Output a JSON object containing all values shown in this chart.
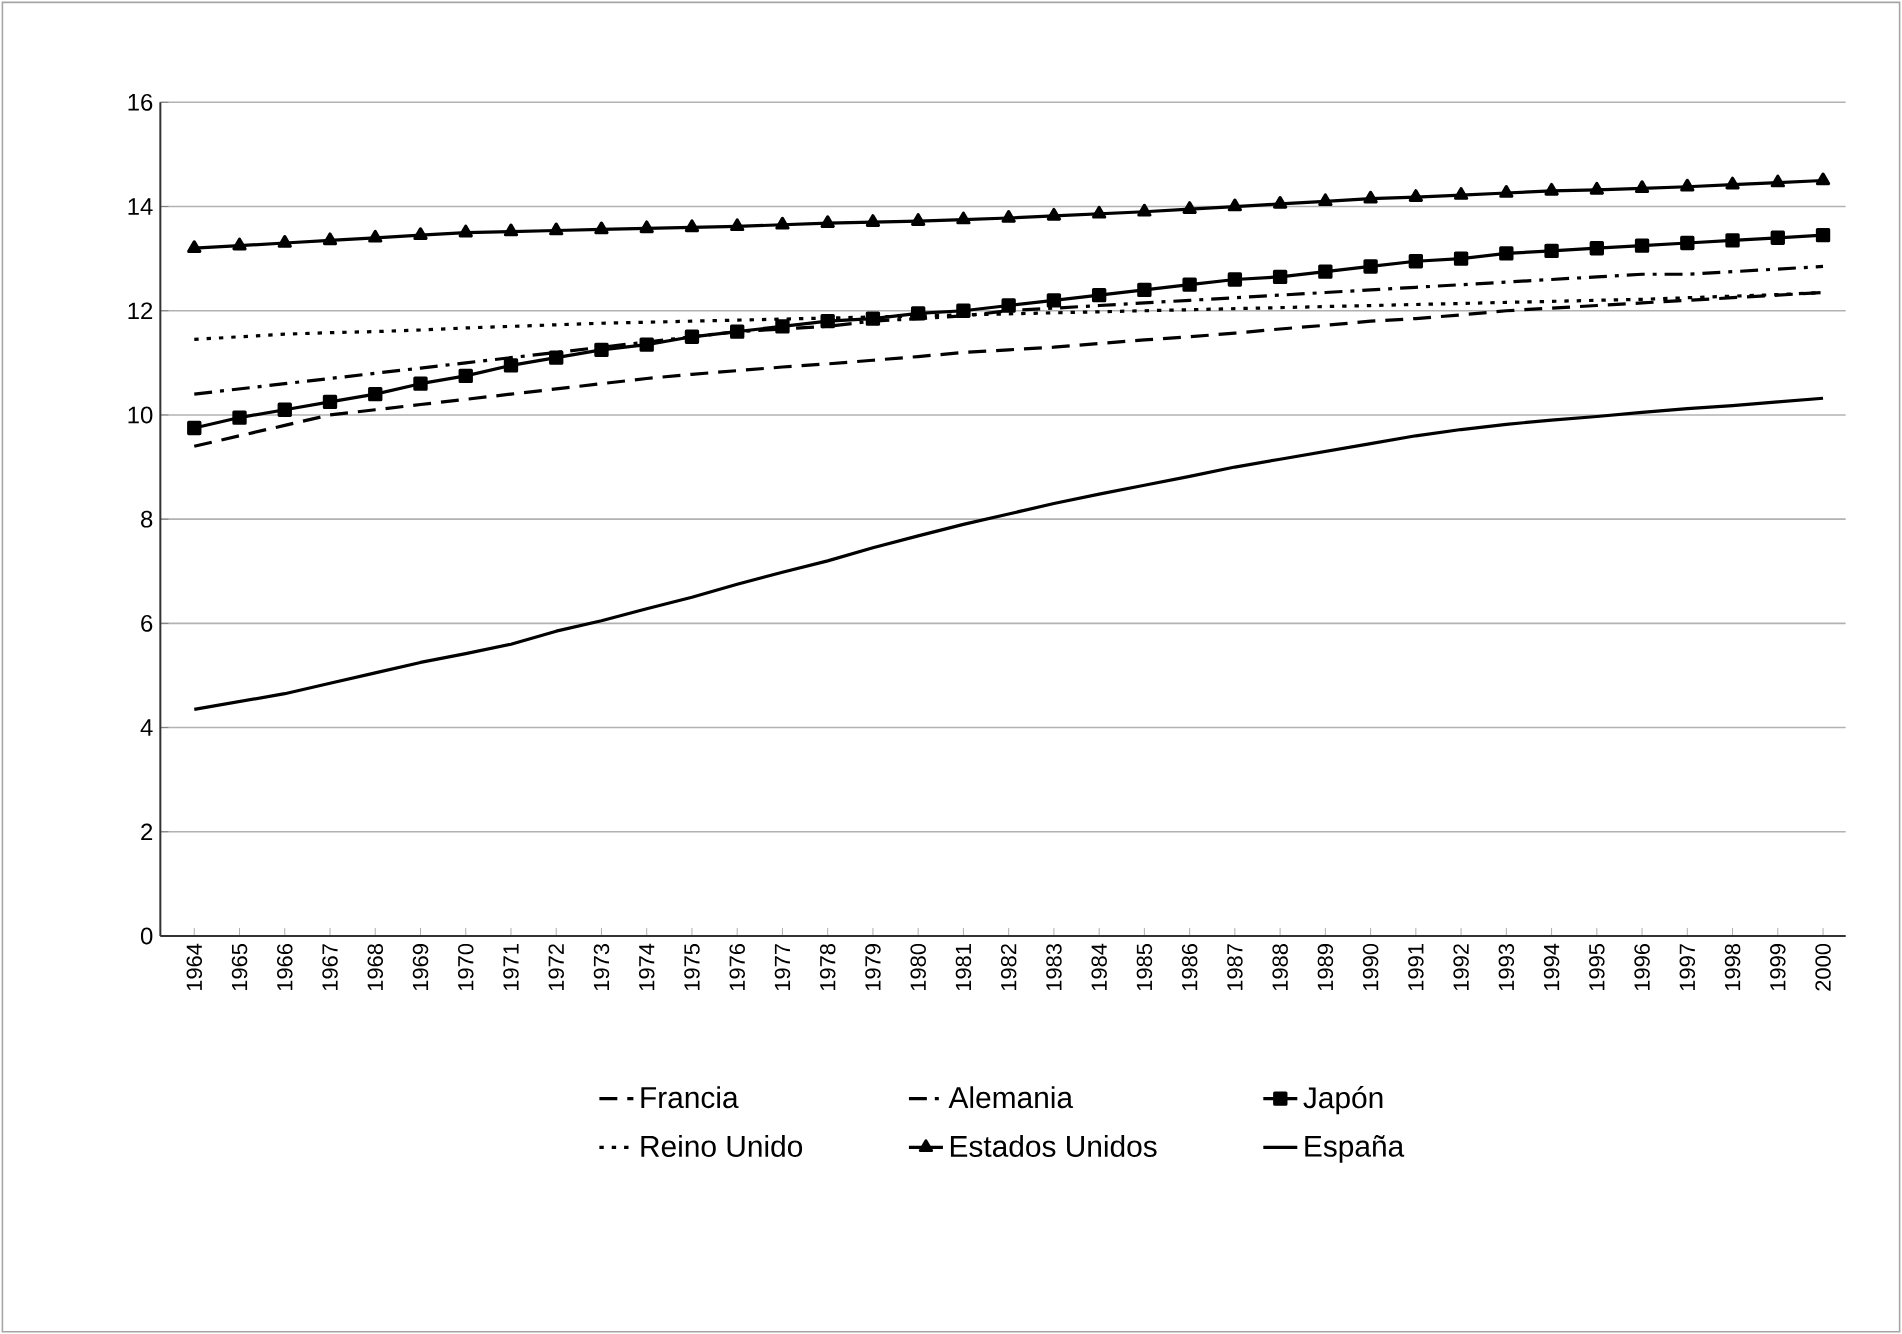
{
  "chart_data": {
    "type": "line",
    "categories": [
      "1964",
      "1965",
      "1966",
      "1967",
      "1968",
      "1969",
      "1970",
      "1971",
      "1972",
      "1973",
      "1974",
      "1975",
      "1976",
      "1977",
      "1978",
      "1979",
      "1980",
      "1981",
      "1982",
      "1983",
      "1984",
      "1985",
      "1986",
      "1987",
      "1988",
      "1989",
      "1990",
      "1991",
      "1992",
      "1993",
      "1994",
      "1995",
      "1996",
      "1997",
      "1998",
      "1999",
      "2000"
    ],
    "series": [
      {
        "name": "Francia",
        "color": "#000000",
        "line_style": "dashed",
        "marker": "none",
        "values": [
          9.4,
          9.6,
          9.8,
          10.0,
          10.1,
          10.2,
          10.3,
          10.4,
          10.5,
          10.6,
          10.7,
          10.78,
          10.85,
          10.92,
          10.98,
          11.05,
          11.12,
          11.2,
          11.25,
          11.3,
          11.37,
          11.44,
          11.5,
          11.57,
          11.65,
          11.72,
          11.8,
          11.85,
          11.92,
          12.0,
          12.05,
          12.1,
          12.15,
          12.2,
          12.25,
          12.3,
          12.35
        ]
      },
      {
        "name": "Alemania",
        "color": "#000000",
        "line_style": "dashdot",
        "marker": "none",
        "values": [
          10.4,
          10.5,
          10.6,
          10.7,
          10.8,
          10.9,
          11.0,
          11.1,
          11.2,
          11.3,
          11.4,
          11.5,
          11.6,
          11.65,
          11.7,
          11.8,
          11.85,
          11.9,
          12.0,
          12.05,
          12.1,
          12.15,
          12.2,
          12.25,
          12.3,
          12.35,
          12.4,
          12.45,
          12.5,
          12.55,
          12.6,
          12.65,
          12.7,
          12.7,
          12.75,
          12.8,
          12.85
        ]
      },
      {
        "name": "Japón",
        "color": "#000000",
        "line_style": "solid",
        "marker": "square",
        "values": [
          9.75,
          9.95,
          10.1,
          10.25,
          10.4,
          10.6,
          10.75,
          10.95,
          11.1,
          11.25,
          11.35,
          11.5,
          11.6,
          11.7,
          11.8,
          11.85,
          11.95,
          12.0,
          12.1,
          12.2,
          12.3,
          12.4,
          12.5,
          12.6,
          12.65,
          12.75,
          12.85,
          12.95,
          13.0,
          13.1,
          13.15,
          13.2,
          13.25,
          13.3,
          13.35,
          13.4,
          13.45
        ]
      },
      {
        "name": "Reino Unido",
        "color": "#000000",
        "line_style": "dotted",
        "marker": "none",
        "values": [
          11.45,
          11.5,
          11.55,
          11.58,
          11.6,
          11.63,
          11.67,
          11.7,
          11.73,
          11.76,
          11.78,
          11.8,
          11.82,
          11.84,
          11.86,
          11.88,
          11.9,
          11.92,
          11.94,
          11.96,
          11.98,
          12.0,
          12.02,
          12.04,
          12.06,
          12.08,
          12.1,
          12.12,
          12.14,
          12.16,
          12.18,
          12.2,
          12.22,
          12.25,
          12.28,
          12.31,
          12.35
        ]
      },
      {
        "name": "Estados Unidos",
        "color": "#000000",
        "line_style": "solid",
        "marker": "triangle",
        "values": [
          13.2,
          13.25,
          13.3,
          13.35,
          13.4,
          13.45,
          13.5,
          13.52,
          13.54,
          13.56,
          13.58,
          13.6,
          13.62,
          13.65,
          13.68,
          13.7,
          13.72,
          13.75,
          13.78,
          13.82,
          13.86,
          13.9,
          13.95,
          14.0,
          14.05,
          14.1,
          14.15,
          14.18,
          14.22,
          14.26,
          14.3,
          14.32,
          14.35,
          14.38,
          14.42,
          14.46,
          14.5
        ]
      },
      {
        "name": "España",
        "color": "#000000",
        "line_style": "solid",
        "marker": "none",
        "values": [
          4.35,
          4.5,
          4.65,
          4.85,
          5.05,
          5.25,
          5.42,
          5.6,
          5.85,
          6.05,
          6.28,
          6.5,
          6.75,
          6.98,
          7.2,
          7.45,
          7.68,
          7.9,
          8.1,
          8.3,
          8.48,
          8.65,
          8.82,
          9.0,
          9.15,
          9.3,
          9.45,
          9.6,
          9.72,
          9.82,
          9.9,
          9.97,
          10.05,
          10.12,
          10.18,
          10.25,
          10.32
        ]
      }
    ],
    "ylim": [
      0,
      16
    ],
    "yticks": [
      0,
      2,
      4,
      6,
      8,
      10,
      12,
      14,
      16
    ],
    "grid": "y",
    "legend": "bottom"
  }
}
